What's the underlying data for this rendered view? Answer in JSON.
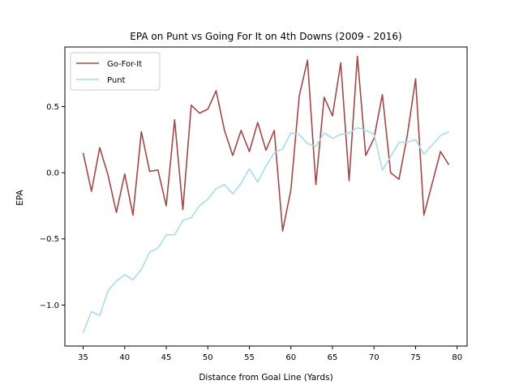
{
  "chart_data": {
    "type": "line",
    "title": "EPA on Punt vs Going For It on 4th Downs (2009 - 2016)",
    "xlabel": "Distance from Goal Line (Yards)",
    "ylabel": "EPA",
    "xlim": [
      32.8,
      81.2
    ],
    "ylim": [
      -1.31,
      0.95
    ],
    "xticks": [
      35,
      40,
      45,
      50,
      55,
      60,
      65,
      70,
      75,
      80
    ],
    "xtick_labels": [
      "35",
      "40",
      "45",
      "50",
      "55",
      "60",
      "65",
      "70",
      "75",
      "80"
    ],
    "yticks": [
      -1.0,
      -0.5,
      0.0,
      0.5
    ],
    "ytick_labels": [
      "−1.0",
      "−0.5",
      "0.0",
      "0.5"
    ],
    "grid": false,
    "legend_position": "upper-left",
    "x": [
      35,
      36,
      37,
      38,
      39,
      40,
      41,
      42,
      43,
      44,
      45,
      46,
      47,
      48,
      49,
      50,
      51,
      52,
      53,
      54,
      55,
      56,
      57,
      58,
      59,
      60,
      61,
      62,
      63,
      64,
      65,
      66,
      67,
      68,
      69,
      70,
      71,
      72,
      73,
      74,
      75,
      76,
      77,
      78,
      79
    ],
    "series": [
      {
        "name": "Go-For-It",
        "color": "#a04848",
        "values": [
          0.15,
          -0.14,
          0.19,
          -0.02,
          -0.3,
          -0.01,
          -0.32,
          0.31,
          0.01,
          0.02,
          -0.25,
          0.4,
          -0.28,
          0.51,
          0.45,
          0.48,
          0.62,
          0.32,
          0.13,
          0.32,
          0.16,
          0.38,
          0.17,
          0.32,
          -0.44,
          -0.13,
          0.58,
          0.85,
          -0.09,
          0.57,
          0.43,
          0.83,
          -0.06,
          0.88,
          0.13,
          0.26,
          0.59,
          0.0,
          -0.05,
          0.28,
          0.71,
          -0.32,
          -0.08,
          0.16,
          0.06
        ]
      },
      {
        "name": "Punt",
        "color": "#a8dceb",
        "values": [
          -1.21,
          -1.05,
          -1.08,
          -0.89,
          -0.82,
          -0.77,
          -0.81,
          -0.73,
          -0.6,
          -0.57,
          -0.47,
          -0.47,
          -0.36,
          -0.34,
          -0.25,
          -0.2,
          -0.12,
          -0.09,
          -0.16,
          -0.08,
          0.03,
          -0.07,
          0.05,
          0.15,
          0.18,
          0.3,
          0.29,
          0.22,
          0.2,
          0.3,
          0.26,
          0.29,
          0.3,
          0.34,
          0.32,
          0.29,
          0.02,
          0.12,
          0.23,
          0.23,
          0.25,
          0.14,
          0.21,
          0.28,
          0.31
        ]
      }
    ]
  }
}
